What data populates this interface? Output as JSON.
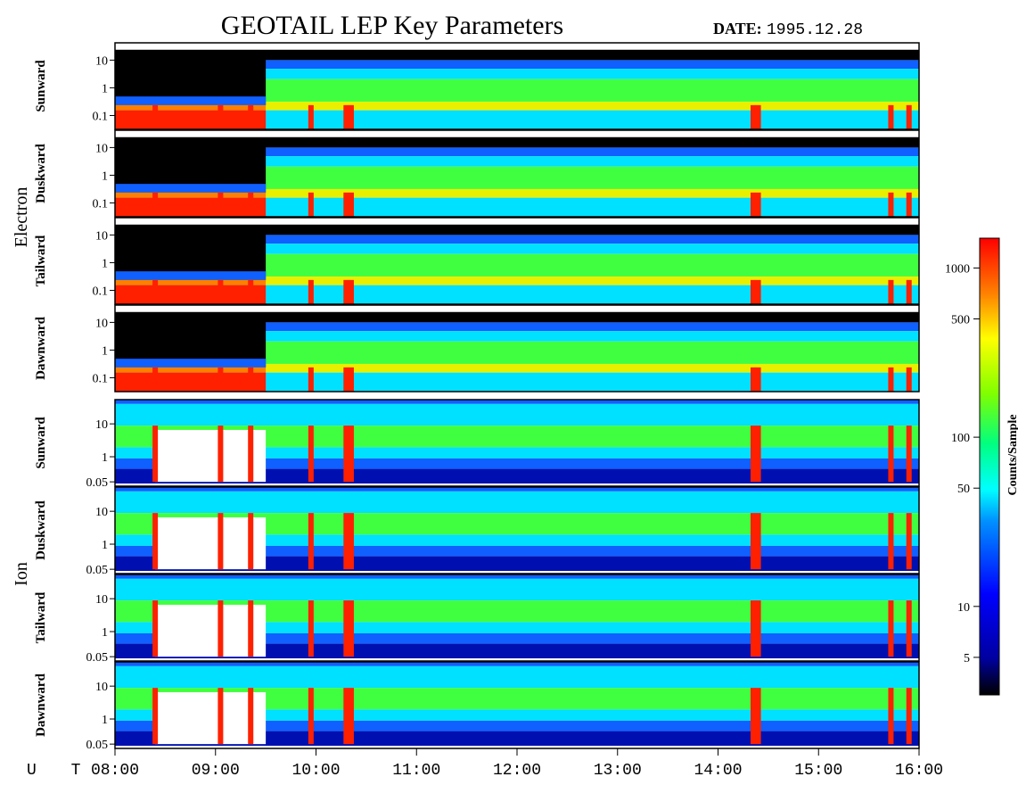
{
  "title": "GEOTAIL LEP Key Parameters",
  "date_label": "DATE:",
  "date_value": "1995.12.28",
  "chart_data": {
    "type": "heatmap",
    "groups": [
      {
        "name": "Electron",
        "panels": [
          "Sunward",
          "Duskward",
          "Tailward",
          "Dawnward"
        ],
        "y_ticks": [
          "10",
          "1",
          "0.1"
        ],
        "y_tick_values": [
          10,
          1,
          0.1
        ],
        "ylim": [
          0.05,
          25
        ]
      },
      {
        "name": "Ion",
        "panels": [
          "Sunward",
          "Duskward",
          "Tailward",
          "Dawnward"
        ],
        "y_ticks": [
          "10",
          "1",
          "0.05"
        ],
        "y_tick_values": [
          10,
          1,
          0.05
        ],
        "ylim": [
          0.05,
          25
        ]
      }
    ],
    "x_axis_label": "U T",
    "x_ticks": [
      "08:00",
      "09:00",
      "10:00",
      "11:00",
      "12:00",
      "13:00",
      "14:00",
      "15:00",
      "16:00"
    ],
    "x_range_hours": [
      8,
      16
    ],
    "colorbar": {
      "label": "Counts/Sample",
      "ticks": [
        "1000",
        "500",
        "100",
        "50",
        "10",
        "5"
      ],
      "tick_values": [
        1000,
        500,
        100,
        50,
        10,
        5
      ],
      "range": [
        3,
        1500
      ],
      "scale": "log",
      "colors": [
        "#000000",
        "#0000c0",
        "#0000ff",
        "#0080ff",
        "#00ffff",
        "#00ff80",
        "#80ff00",
        "#ffff00",
        "#ff8000",
        "#ff0000"
      ]
    }
  }
}
